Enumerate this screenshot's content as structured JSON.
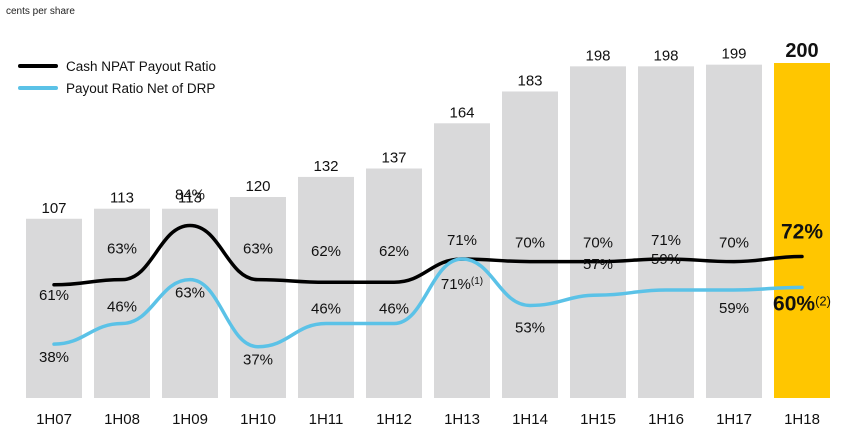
{
  "unit_label": "cents per share",
  "chart_data": {
    "type": "bar",
    "categories": [
      "1H07",
      "1H08",
      "1H09",
      "1H10",
      "1H11",
      "1H12",
      "1H13",
      "1H14",
      "1H15",
      "1H16",
      "1H17",
      "1H18"
    ],
    "values": [
      107,
      113,
      113,
      120,
      132,
      137,
      164,
      183,
      198,
      198,
      199,
      200
    ],
    "value_labels": [
      "107",
      "113",
      "113",
      "120",
      "132",
      "137",
      "164",
      "183",
      "198",
      "198",
      "199",
      "200"
    ],
    "ylim": [
      0,
      200
    ],
    "bar_color": "#d9d9da",
    "highlight_color": "#ffc600",
    "highlight_index": 11,
    "series": [
      {
        "name": "Cash NPAT Payout Ratio",
        "type": "line",
        "color": "#000000",
        "values": [
          61,
          63,
          84,
          63,
          62,
          62,
          71,
          70,
          70,
          71,
          70,
          72
        ],
        "labels": [
          "61%",
          "63%",
          "84%",
          "63%",
          "62%",
          "62%",
          "71%",
          "70%",
          "70%",
          "71%",
          "70%",
          "72%"
        ]
      },
      {
        "name": "Payout Ratio Net of DRP",
        "type": "line",
        "color": "#5bc2e7",
        "values": [
          38,
          46,
          63,
          37,
          46,
          46,
          71,
          53,
          57,
          59,
          59,
          60
        ],
        "labels": [
          "38%",
          "46%",
          "63%",
          "37%",
          "46%",
          "46%",
          "71%",
          "53%",
          "57%",
          "59%",
          "59%",
          "60%"
        ],
        "label_notes": [
          "",
          "",
          "",
          "",
          "",
          "",
          "(1)",
          "",
          "",
          "",
          "",
          "(2)"
        ]
      }
    ],
    "legend_position": "top-left",
    "grid": false
  }
}
